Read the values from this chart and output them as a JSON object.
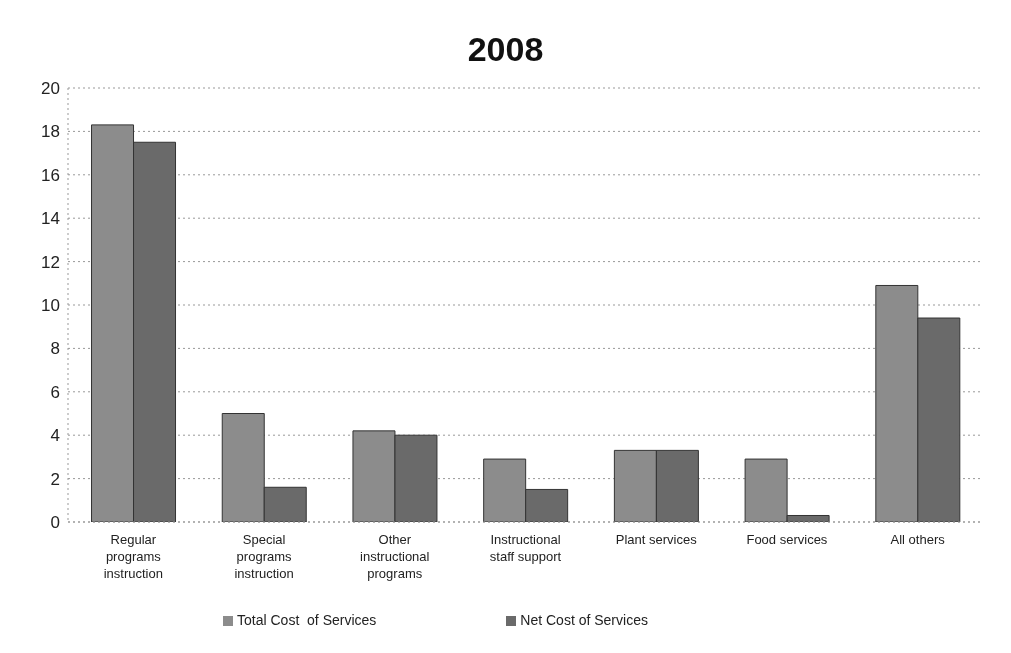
{
  "chart_data": {
    "type": "bar",
    "title": "2008",
    "categories": [
      "Regular programs instruction",
      "Special programs instruction",
      "Other instructional programs",
      "Instructional staff support",
      "Plant services",
      "Food services",
      "All others"
    ],
    "series": [
      {
        "name": "Total Cost  of Services",
        "color": "#8c8c8c",
        "values": [
          18.3,
          5.0,
          4.2,
          2.9,
          3.3,
          2.9,
          10.9
        ]
      },
      {
        "name": "Net Cost of Services",
        "color": "#6a6a6a",
        "values": [
          17.5,
          1.6,
          4.0,
          1.5,
          3.3,
          0.3,
          9.4
        ]
      }
    ],
    "ylim": [
      0,
      20
    ],
    "yticks": [
      0,
      2,
      4,
      6,
      8,
      10,
      12,
      14,
      16,
      18,
      20
    ],
    "grid": "y",
    "legend": "bottom"
  }
}
